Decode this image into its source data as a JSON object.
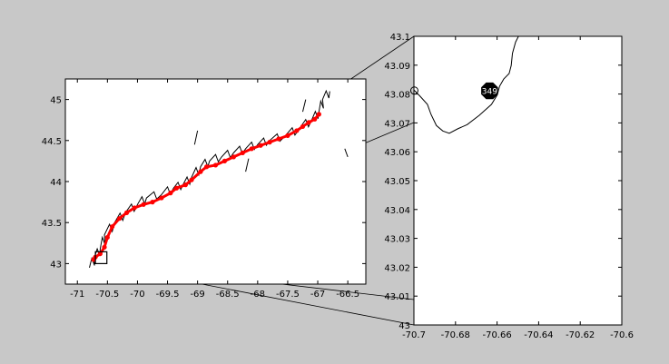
{
  "colors": {
    "figure_background": "#c8c8c8",
    "axes_background": "#ffffff",
    "coastline": "#000000",
    "track": "#ff0000",
    "marker_fill": "#000000",
    "marker_text": "#ffffff"
  },
  "chart_data": [
    {
      "type": "scatter",
      "title": "",
      "xlabel": "",
      "ylabel": "",
      "xlim": [
        -71.2,
        -66.2
      ],
      "ylim": [
        42.75,
        45.25
      ],
      "xticks": [
        -71,
        -70.5,
        -70,
        -69.5,
        -69,
        -68.5,
        -68,
        -67.5,
        -67,
        -66.5
      ],
      "xtick_labels": [
        "-71",
        "-70.5",
        "-70",
        "-69.5",
        "-69",
        "-68.5",
        "-68",
        "-67.5",
        "-67",
        "-66.5"
      ],
      "yticks": [
        43,
        43.5,
        44,
        44.5,
        45
      ],
      "ytick_labels": [
        "43",
        "43.5",
        "44",
        "44.5",
        "45"
      ],
      "grid": false,
      "coastline": [
        [
          -70.8,
          42.95
        ],
        [
          -70.72,
          43.07
        ],
        [
          -70.62,
          43.18
        ],
        [
          -70.55,
          43.35
        ],
        [
          -70.38,
          43.5
        ],
        [
          -70.2,
          43.62
        ],
        [
          -70.0,
          43.72
        ],
        [
          -69.85,
          43.8
        ],
        [
          -69.6,
          43.84
        ],
        [
          -69.4,
          43.92
        ],
        [
          -69.25,
          43.95
        ],
        [
          -69.1,
          44.05
        ],
        [
          -68.95,
          44.18
        ],
        [
          -68.8,
          44.25
        ],
        [
          -68.6,
          44.3
        ],
        [
          -68.4,
          44.35
        ],
        [
          -68.2,
          44.4
        ],
        [
          -68.0,
          44.45
        ],
        [
          -67.8,
          44.5
        ],
        [
          -67.55,
          44.55
        ],
        [
          -67.3,
          44.65
        ],
        [
          -67.1,
          44.75
        ],
        [
          -66.98,
          44.85
        ],
        [
          -66.92,
          45.0
        ],
        [
          -66.8,
          45.1
        ]
      ],
      "track": [
        [
          -70.73,
          43.05
        ],
        [
          -70.7,
          43.08
        ],
        [
          -70.62,
          43.12
        ],
        [
          -70.55,
          43.2
        ],
        [
          -70.5,
          43.32
        ],
        [
          -70.42,
          43.45
        ],
        [
          -70.3,
          43.55
        ],
        [
          -70.18,
          43.62
        ],
        [
          -70.05,
          43.68
        ],
        [
          -69.9,
          43.72
        ],
        [
          -69.75,
          43.75
        ],
        [
          -69.6,
          43.8
        ],
        [
          -69.45,
          43.86
        ],
        [
          -69.35,
          43.92
        ],
        [
          -69.2,
          43.96
        ],
        [
          -69.1,
          44.02
        ],
        [
          -68.95,
          44.12
        ],
        [
          -68.85,
          44.18
        ],
        [
          -68.7,
          44.2
        ],
        [
          -68.55,
          44.25
        ],
        [
          -68.4,
          44.3
        ],
        [
          -68.25,
          44.35
        ],
        [
          -68.1,
          44.4
        ],
        [
          -67.95,
          44.44
        ],
        [
          -67.8,
          44.48
        ],
        [
          -67.65,
          44.52
        ],
        [
          -67.5,
          44.56
        ],
        [
          -67.35,
          44.62
        ],
        [
          -67.25,
          44.67
        ],
        [
          -67.15,
          44.72
        ],
        [
          -67.05,
          44.76
        ],
        [
          -66.98,
          44.82
        ]
      ],
      "inset_box": {
        "xlim": [
          -70.7,
          -70.6
        ],
        "ylim": [
          43.0,
          43.1
        ]
      }
    },
    {
      "type": "line",
      "title": "",
      "xlabel": "",
      "ylabel": "",
      "xlim": [
        -70.7,
        -70.6
      ],
      "ylim": [
        43.0,
        43.1
      ],
      "xticks": [
        -70.7,
        -70.68,
        -70.66,
        -70.64,
        -70.62,
        -70.6
      ],
      "xtick_labels": [
        "-70.7",
        "-70.68",
        "-70.66",
        "-70.64",
        "-70.62",
        "-70.6"
      ],
      "yticks": [
        43,
        43.01,
        43.02,
        43.03,
        43.04,
        43.05,
        43.06,
        43.07,
        43.08,
        43.09,
        43.1
      ],
      "ytick_labels": [
        "43",
        "43.01",
        "43.02",
        "43.03",
        "43.04",
        "43.05",
        "43.06",
        "43.07",
        "43.08",
        "43.09",
        "43.1"
      ],
      "grid": false,
      "coastline": [
        [
          -70.7,
          43.0814
        ],
        [
          -70.697,
          43.0792
        ],
        [
          -70.6935,
          43.0764
        ],
        [
          -70.6918,
          43.073
        ],
        [
          -70.6892,
          43.0691
        ],
        [
          -70.6861,
          43.0672
        ],
        [
          -70.683,
          43.0664
        ],
        [
          -70.6788,
          43.068
        ],
        [
          -70.6744,
          43.0694
        ],
        [
          -70.6686,
          43.0726
        ],
        [
          -70.6627,
          43.0764
        ],
        [
          -70.6599,
          43.0797
        ],
        [
          -70.6588,
          43.0827
        ],
        [
          -70.6568,
          43.0852
        ],
        [
          -70.6542,
          43.0871
        ],
        [
          -70.6532,
          43.0899
        ],
        [
          -70.6526,
          43.0941
        ],
        [
          -70.6511,
          43.098
        ],
        [
          -70.6497,
          43.1
        ]
      ],
      "islet": [
        -70.6998,
        43.0812
      ],
      "marker": {
        "x": -70.6636,
        "y": 43.0811,
        "label": "349"
      }
    }
  ]
}
